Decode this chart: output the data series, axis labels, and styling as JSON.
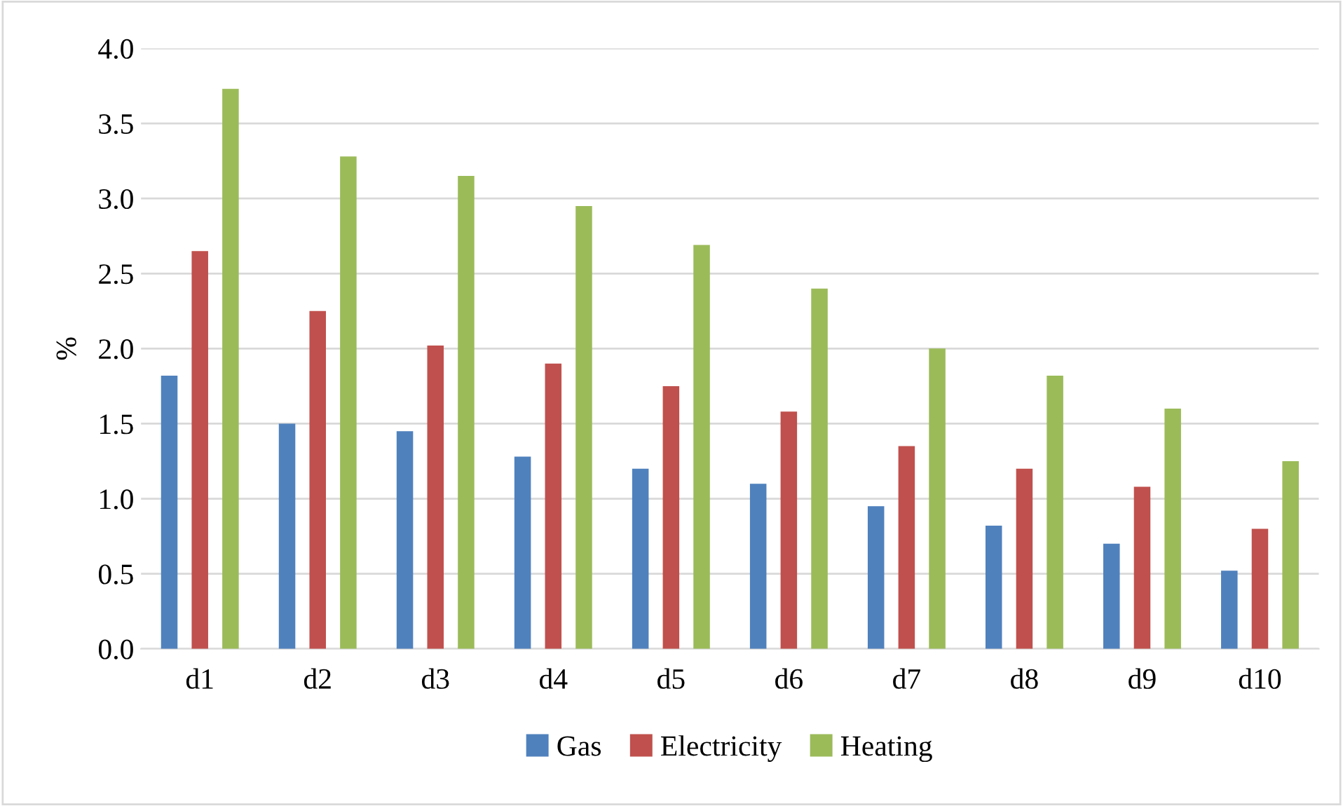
{
  "chart_data": {
    "type": "bar",
    "ylabel": "%",
    "categories": [
      "d1",
      "d2",
      "d3",
      "d4",
      "d5",
      "d6",
      "d7",
      "d8",
      "d9",
      "d10"
    ],
    "series": [
      {
        "name": "Gas",
        "color": "#4f81bd",
        "values": [
          1.82,
          1.5,
          1.45,
          1.28,
          1.2,
          1.1,
          0.95,
          0.82,
          0.7,
          0.52
        ]
      },
      {
        "name": "Electricity",
        "color": "#c0504d",
        "values": [
          2.65,
          2.25,
          2.02,
          1.9,
          1.75,
          1.58,
          1.35,
          1.2,
          1.08,
          0.8
        ]
      },
      {
        "name": "Heating",
        "color": "#9bbb59",
        "values": [
          3.73,
          3.28,
          3.15,
          2.95,
          2.69,
          2.4,
          2.0,
          1.82,
          1.6,
          1.25
        ]
      }
    ],
    "ylim": [
      0,
      4.0
    ],
    "yticks": [
      {
        "value": 0,
        "label": "0.0"
      },
      {
        "value": 0.5,
        "label": "0.5"
      },
      {
        "value": 1,
        "label": "1.0"
      },
      {
        "value": 1.5,
        "label": "1.5"
      },
      {
        "value": 2,
        "label": "2.0"
      },
      {
        "value": 2.5,
        "label": "2.5"
      },
      {
        "value": 3,
        "label": "3.0"
      },
      {
        "value": 3.5,
        "label": "3.5"
      },
      {
        "value": 4,
        "label": "4.0"
      }
    ],
    "grid": "y",
    "legend": "bottom"
  }
}
